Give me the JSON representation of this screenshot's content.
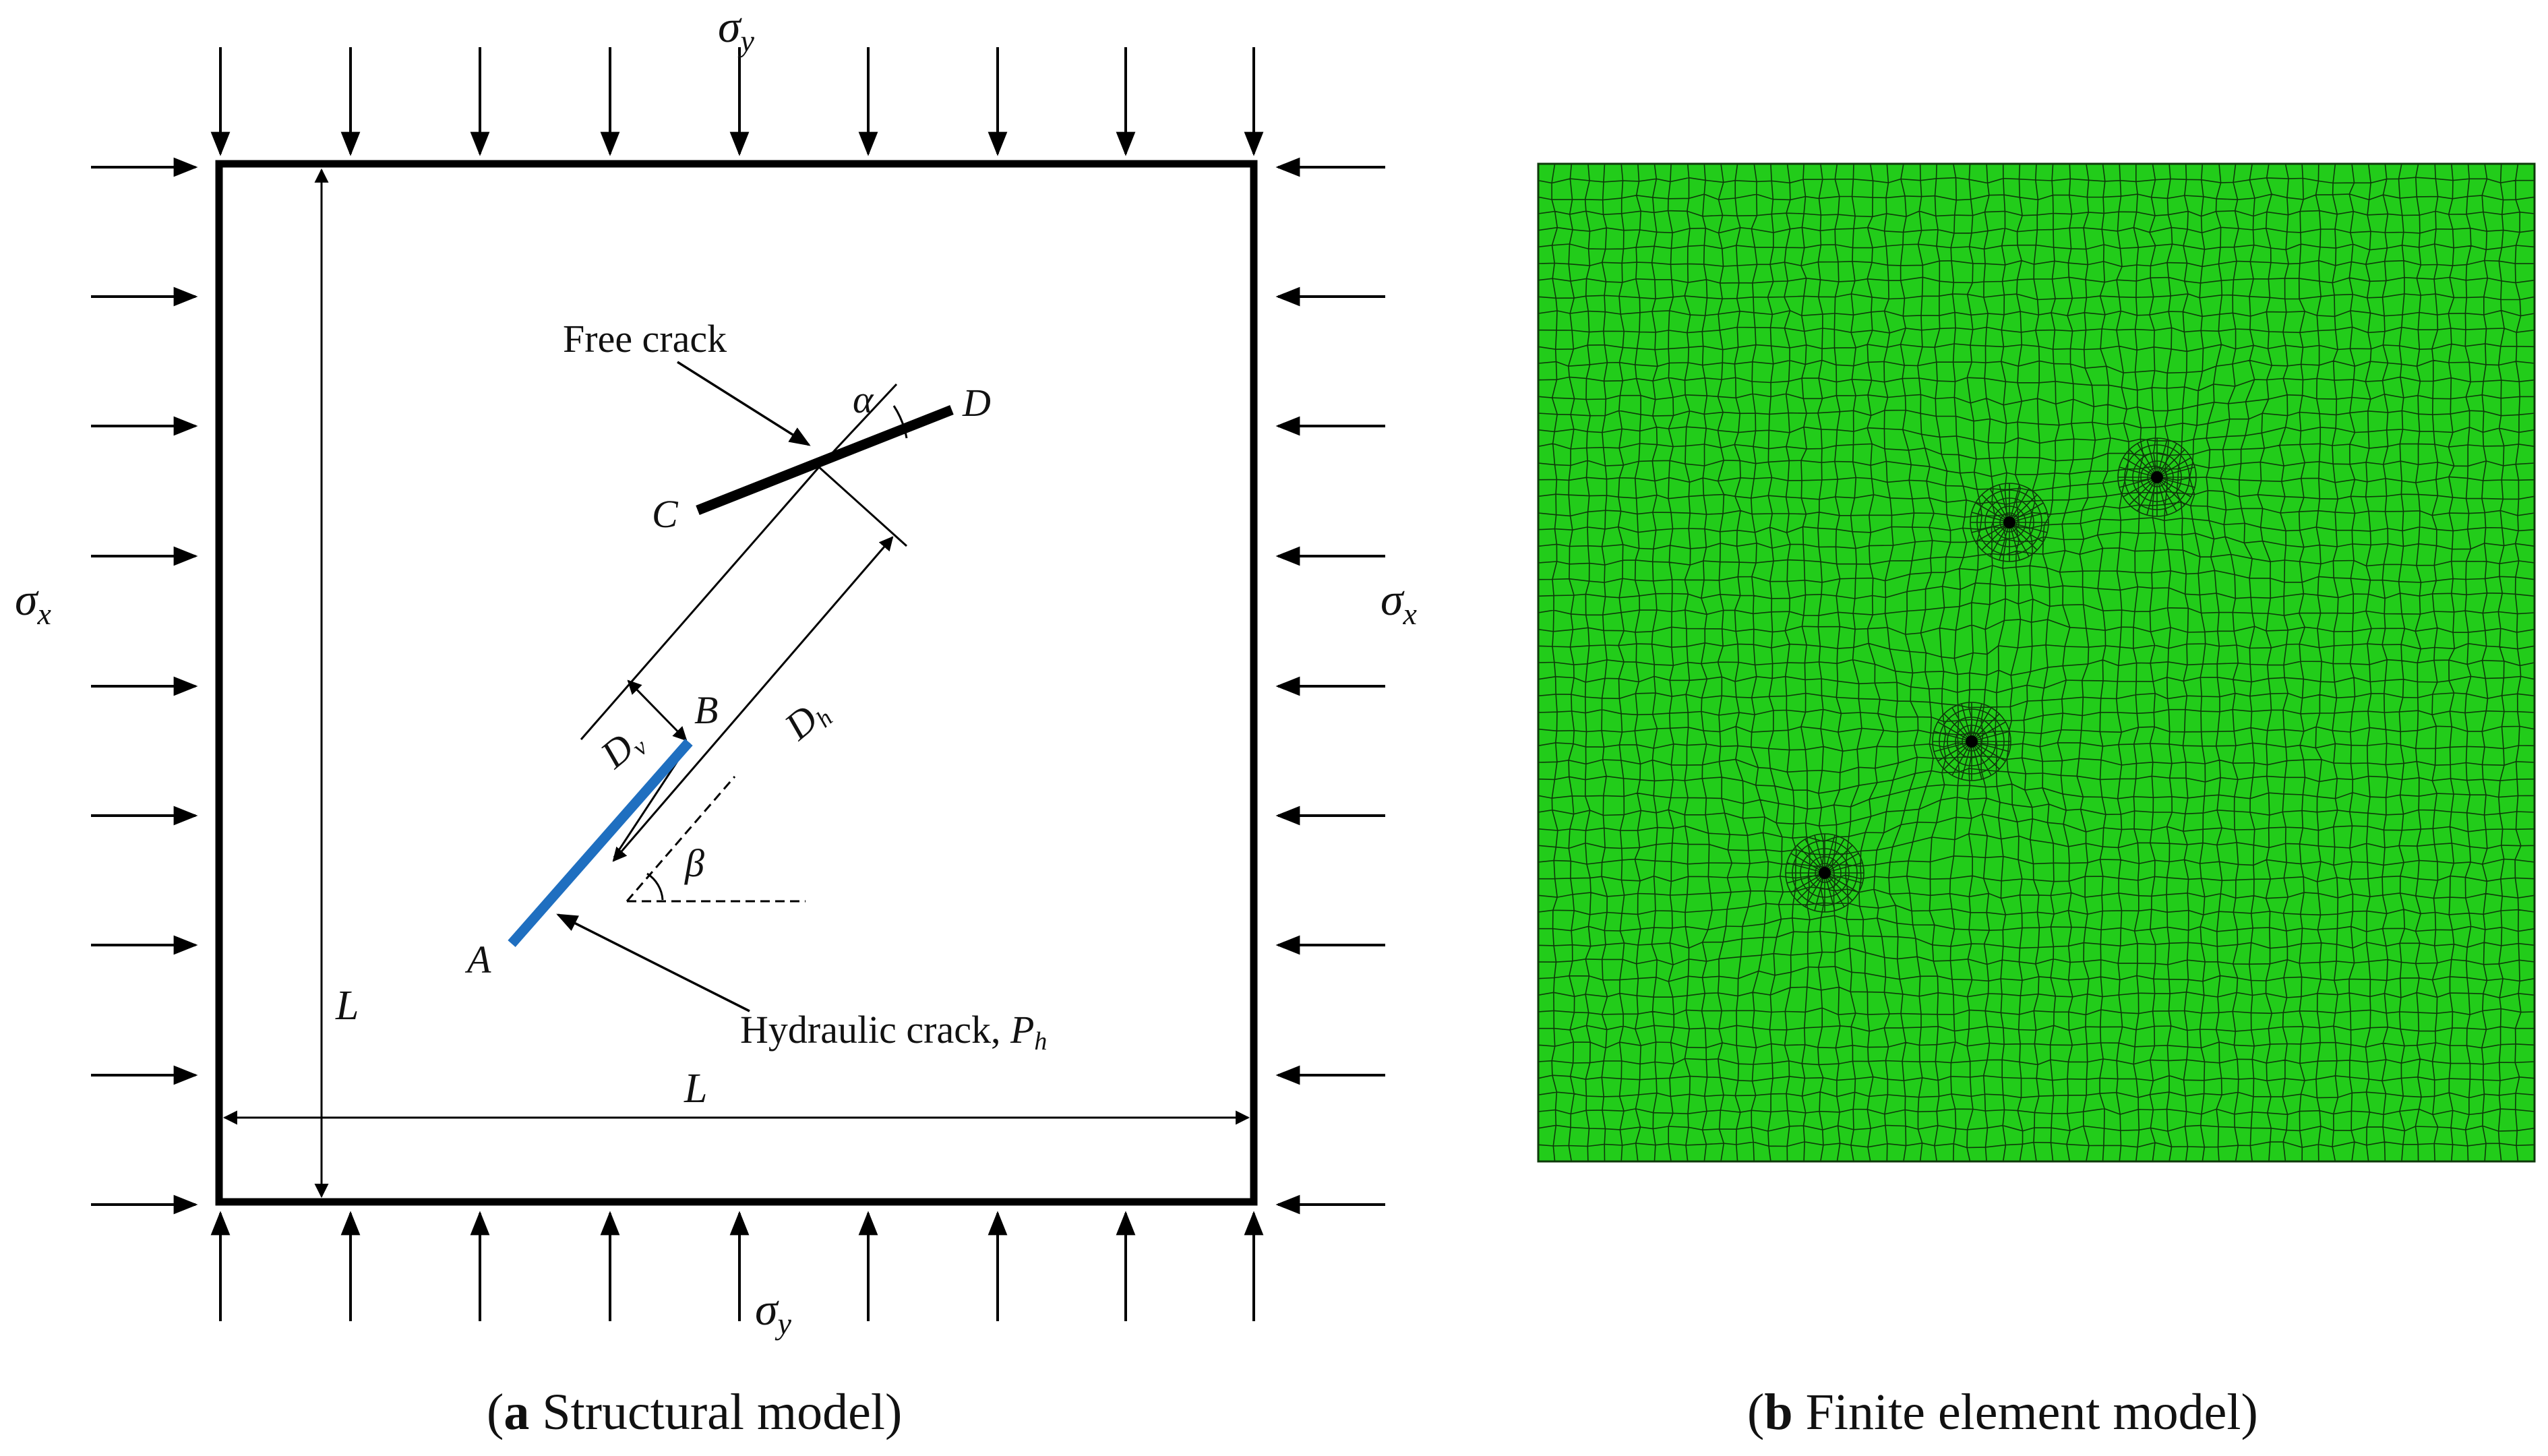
{
  "panel_a": {
    "stress_top": "σ",
    "stress_top_sub": "y",
    "stress_bottom": "σ",
    "stress_bottom_sub": "y",
    "stress_left": "σ",
    "stress_left_sub": "x",
    "stress_right": "σ",
    "stress_right_sub": "x",
    "free_crack_label": "Free crack",
    "hydraulic_crack_label": "Hydraulic crack, ",
    "hydraulic_pressure": "P",
    "hydraulic_pressure_sub": "h",
    "point_a": "A",
    "point_b": "B",
    "point_c": "C",
    "point_d": "D",
    "angle_alpha": "α",
    "angle_beta": "β",
    "dim_dv": "D",
    "dim_dv_sub": "v",
    "dim_dh": "D",
    "dim_dh_sub": "h",
    "dim_l_vertical": "L",
    "dim_l_horizontal": "L",
    "caption_letter": "a",
    "caption_text": " Structural model",
    "colors": {
      "hydraulic_crack": "#1f6fc0",
      "free_crack": "#000000",
      "frame": "#000000"
    }
  },
  "panel_b": {
    "caption_letter": "b",
    "caption_text": " Finite element model",
    "colors": {
      "mesh_fill": "#22cc1a",
      "mesh_line": "#0e3a0a",
      "node_dot": "#000000"
    }
  }
}
